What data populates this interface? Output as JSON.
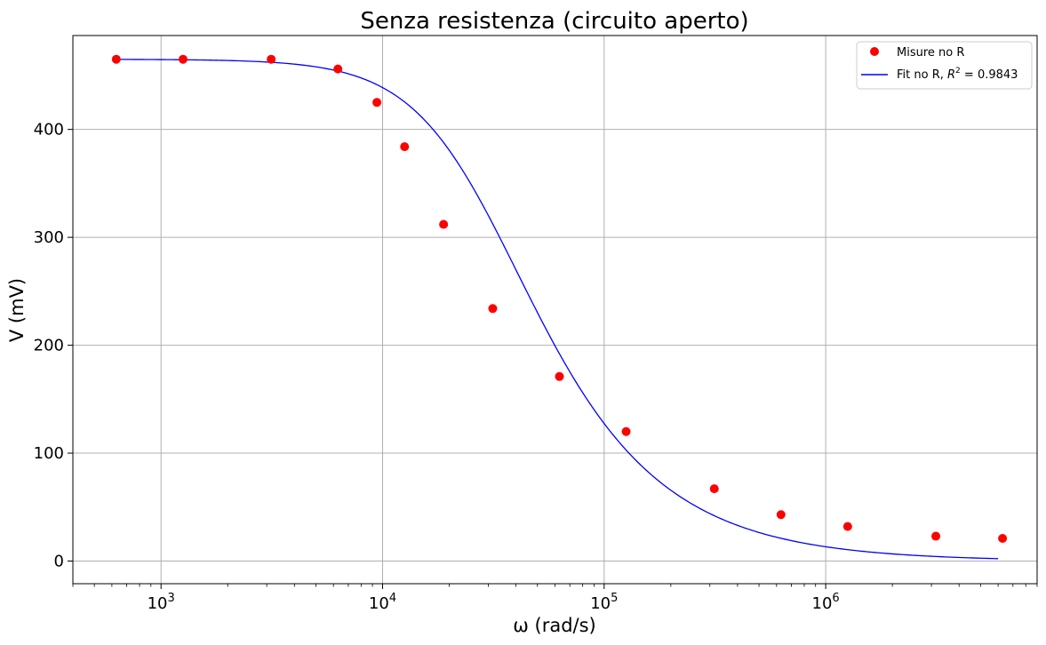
{
  "chart_data": {
    "type": "scatter",
    "title": "Senza resistenza (circuito aperto)",
    "xlabel": "ω (rad/s)",
    "ylabel": "V (mV)",
    "xscale": "log",
    "xlim": [
      400,
      9000000
    ],
    "ylim": [
      -21,
      487
    ],
    "xticks": [
      {
        "value": 1000,
        "base": "10",
        "exp": "3"
      },
      {
        "value": 10000,
        "base": "10",
        "exp": "4"
      },
      {
        "value": 100000,
        "base": "10",
        "exp": "5"
      },
      {
        "value": 1000000,
        "base": "10",
        "exp": "6"
      }
    ],
    "yticks": [
      0,
      100,
      200,
      300,
      400
    ],
    "grid": true,
    "legend_position": "top-right",
    "colors": {
      "measurements": "#ff0000",
      "fit": "#0000ff"
    },
    "series": [
      {
        "name": "Misure no R",
        "kind": "scatter",
        "x": [
          628,
          1257,
          3142,
          6283,
          9425,
          12566,
          18850,
          31416,
          62832,
          125664,
          314159,
          628319,
          1256637,
          3141593,
          6283185
        ],
        "y": [
          465,
          465,
          465,
          456,
          425,
          384,
          312,
          234,
          171,
          120,
          67,
          43,
          32,
          23,
          21
        ]
      },
      {
        "name": "Fit no R, R² = 0.9843",
        "name_prefix": "Fit no R, ",
        "name_r": "R",
        "name_sup": "2",
        "name_suffix": " = 0.9843",
        "kind": "line",
        "fit": {
          "V0": 465,
          "omega_c": 28500
        },
        "x_range": [
          628,
          6000000
        ]
      }
    ]
  }
}
